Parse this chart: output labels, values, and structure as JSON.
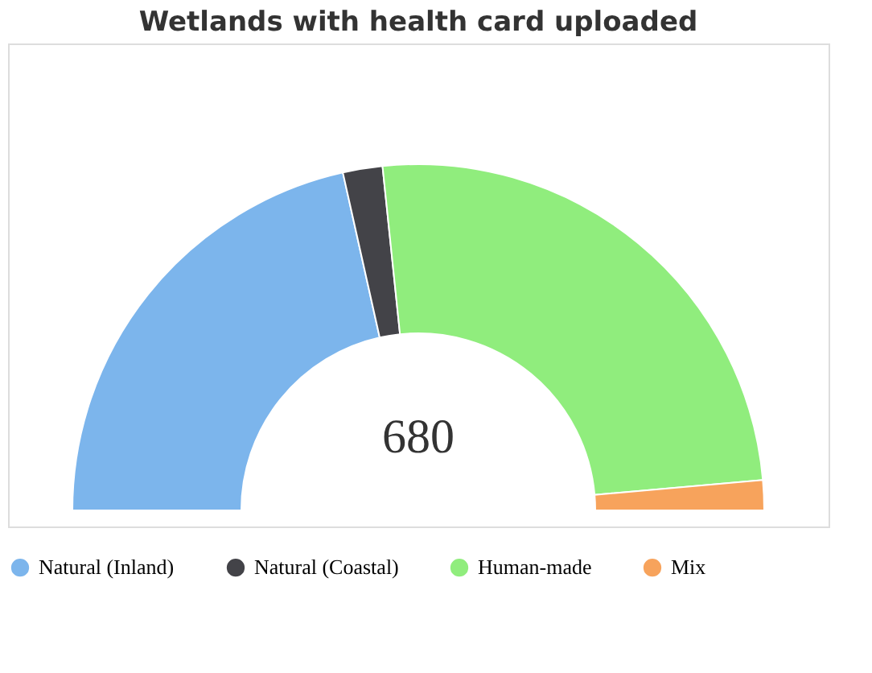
{
  "chart_data": {
    "type": "donut",
    "title": "Wetlands with health card uploaded",
    "categories": [
      "Natural (Inland)",
      "Natural (Coastal)",
      "Human-made",
      "Mix"
    ],
    "values": [
      43,
      3.7,
      50.5,
      2.8
    ],
    "colors": [
      "#7cb5ec",
      "#434348",
      "#90ed7d",
      "#f7a35c"
    ],
    "annotations": [
      "680"
    ],
    "legend": "bottom"
  }
}
